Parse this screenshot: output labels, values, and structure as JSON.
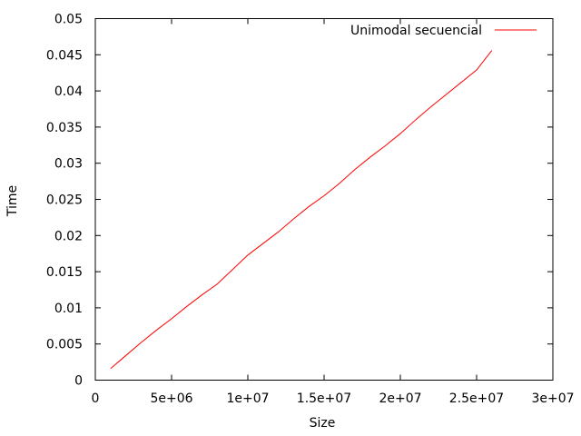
{
  "chart_data": {
    "type": "line",
    "xlabel": "Size",
    "ylabel": "Time",
    "xlim": [
      0,
      30000000
    ],
    "ylim": [
      0,
      0.05
    ],
    "x_ticks": [
      {
        "value": 0,
        "label": "0"
      },
      {
        "value": 5000000,
        "label": "5e+06"
      },
      {
        "value": 10000000,
        "label": "1e+07"
      },
      {
        "value": 15000000,
        "label": "1.5e+07"
      },
      {
        "value": 20000000,
        "label": "2e+07"
      },
      {
        "value": 25000000,
        "label": "2.5e+07"
      },
      {
        "value": 30000000,
        "label": "3e+07"
      }
    ],
    "y_ticks": [
      {
        "value": 0,
        "label": "0"
      },
      {
        "value": 0.005,
        "label": "0.005"
      },
      {
        "value": 0.01,
        "label": "0.01"
      },
      {
        "value": 0.015,
        "label": "0.015"
      },
      {
        "value": 0.02,
        "label": "0.02"
      },
      {
        "value": 0.025,
        "label": "0.025"
      },
      {
        "value": 0.03,
        "label": "0.03"
      },
      {
        "value": 0.035,
        "label": "0.035"
      },
      {
        "value": 0.04,
        "label": "0.04"
      },
      {
        "value": 0.045,
        "label": "0.045"
      },
      {
        "value": 0.05,
        "label": "0.05"
      }
    ],
    "grid": false,
    "legend_position": "top-right",
    "series": [
      {
        "name": "Unimodal secuencial",
        "color": "#ff0000",
        "x": [
          1000000,
          2000000,
          3000000,
          4000000,
          5000000,
          6000000,
          7000000,
          8000000,
          9000000,
          10000000,
          11000000,
          12000000,
          13000000,
          14000000,
          15000000,
          16000000,
          17000000,
          18000000,
          19000000,
          20000000,
          21000000,
          22000000,
          23000000,
          24000000,
          25000000,
          26000000
        ],
        "y": [
          0.0016,
          0.0034,
          0.0052,
          0.0069,
          0.0085,
          0.0102,
          0.0118,
          0.0133,
          0.0153,
          0.0173,
          0.0189,
          0.0205,
          0.0223,
          0.024,
          0.0255,
          0.0272,
          0.0291,
          0.0308,
          0.0324,
          0.0341,
          0.036,
          0.0378,
          0.0395,
          0.0412,
          0.0429,
          0.0456
        ]
      }
    ]
  }
}
